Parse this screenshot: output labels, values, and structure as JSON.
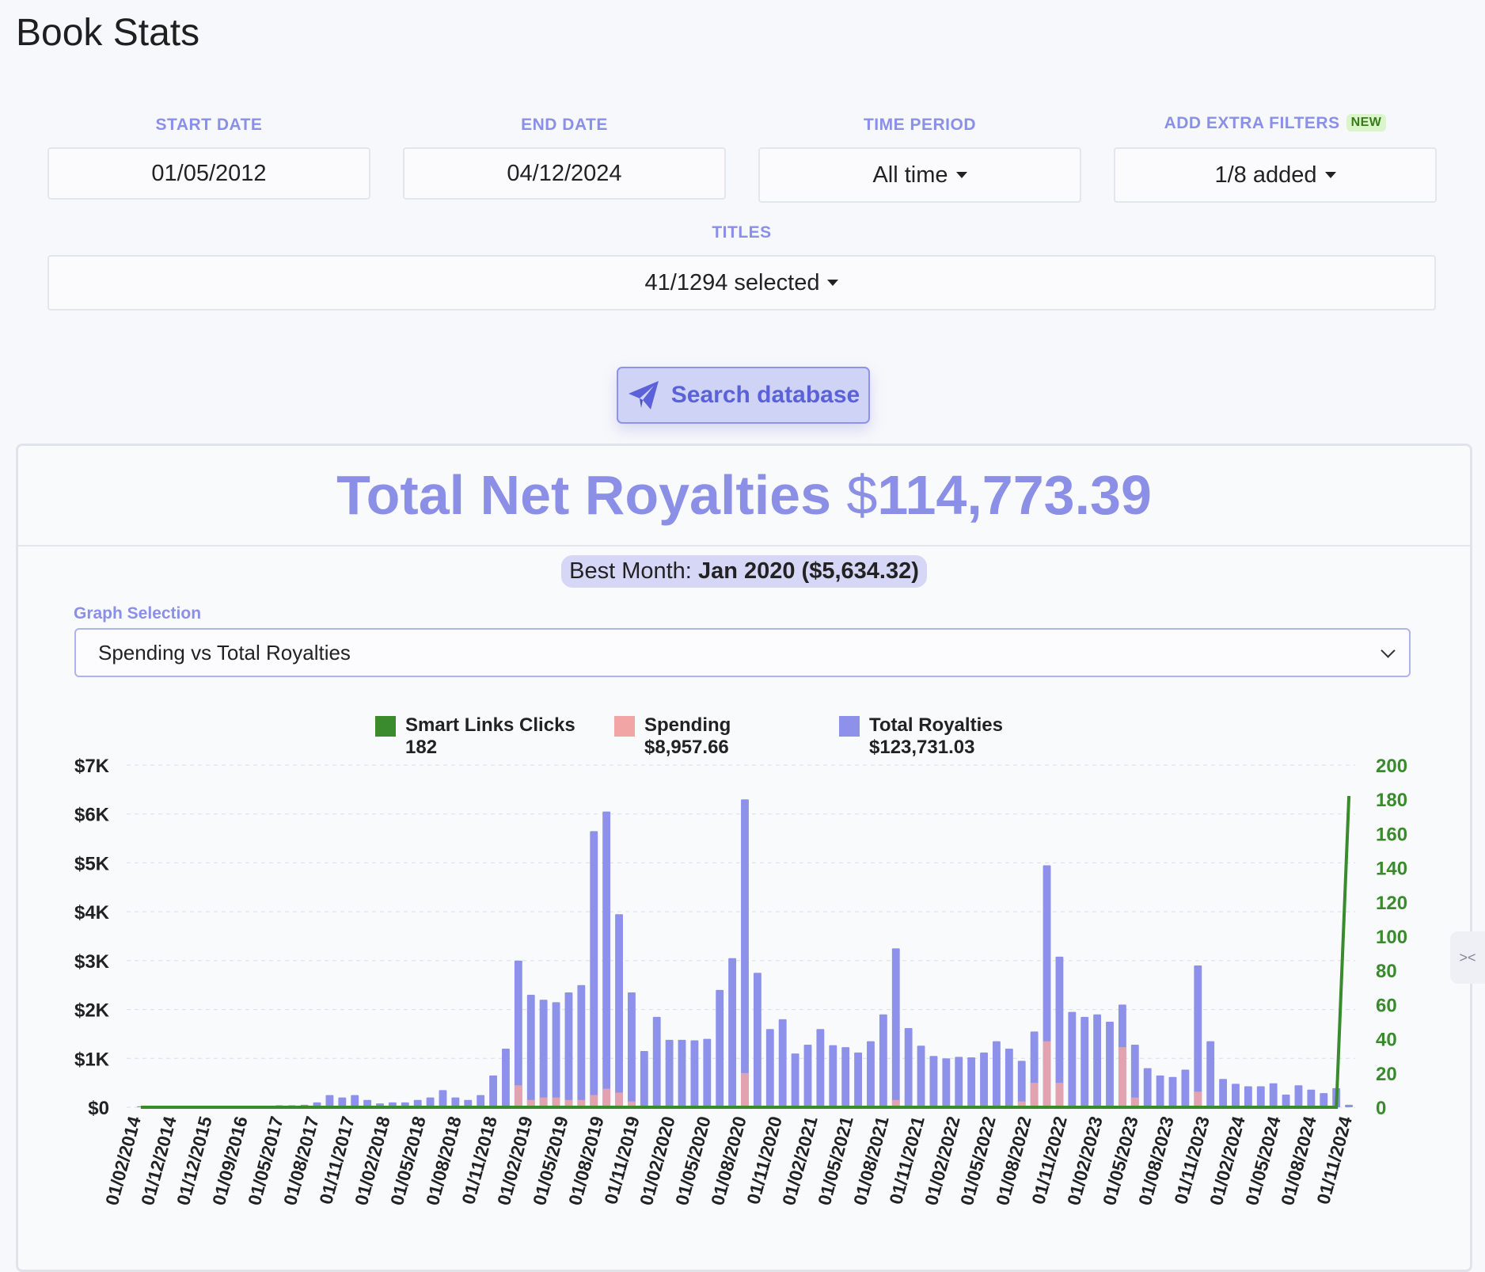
{
  "page_title": "Book Stats",
  "filters": {
    "start_date": {
      "label": "START DATE",
      "value": "01/05/2012"
    },
    "end_date": {
      "label": "END DATE",
      "value": "04/12/2024"
    },
    "time_period": {
      "label": "TIME PERIOD",
      "value": "All time"
    },
    "extra_filters": {
      "label": "ADD EXTRA FILTERS",
      "badge": "NEW",
      "value": "1/8 added"
    },
    "titles": {
      "label": "TITLES",
      "value": "41/1294 selected"
    }
  },
  "search_button": "Search database",
  "summary": {
    "title": "Total Net Royalties",
    "currency": "$",
    "amount": "114,773.39",
    "best_month_label": "Best Month:",
    "best_month_value": "Jan 2020",
    "best_month_amount": "($5,634.32)"
  },
  "graph_selection": {
    "label": "Graph Selection",
    "value": "Spending vs Total Royalties"
  },
  "legend": [
    {
      "name": "Smart Links Clicks",
      "value": "182",
      "color": "#3a8a2e"
    },
    {
      "name": "Spending",
      "value": "$8,957.66",
      "color": "#f2a5a5"
    },
    {
      "name": "Total Royalties",
      "value": "$123,731.03",
      "color": "#8d91ea"
    }
  ],
  "chart_data": {
    "type": "bar",
    "y_left_ticks": [
      "$0",
      "$1K",
      "$2K",
      "$3K",
      "$4K",
      "$5K",
      "$6K",
      "$7K"
    ],
    "y_left_range": [
      0,
      7000
    ],
    "y_right_ticks": [
      "0",
      "20",
      "40",
      "60",
      "80",
      "100",
      "120",
      "140",
      "160",
      "180",
      "200"
    ],
    "y_right_range": [
      0,
      200
    ],
    "x_tick_labels": [
      "01/02/2014",
      "01/12/2014",
      "01/12/2015",
      "01/09/2016",
      "01/05/2017",
      "01/08/2017",
      "01/11/2017",
      "01/02/2018",
      "01/05/2018",
      "01/08/2018",
      "01/11/2018",
      "01/02/2019",
      "01/05/2019",
      "01/08/2019",
      "01/11/2019",
      "01/02/2020",
      "01/05/2020",
      "01/08/2020",
      "01/11/2020",
      "01/02/2021",
      "01/05/2021",
      "01/08/2021",
      "01/11/2021",
      "01/02/2022",
      "01/05/2022",
      "01/08/2022",
      "01/11/2022",
      "01/02/2023",
      "01/05/2023",
      "01/08/2023",
      "01/11/2023",
      "01/02/2024",
      "01/05/2024",
      "01/08/2024",
      "01/11/2024"
    ],
    "royalties": [
      20,
      20,
      20,
      20,
      20,
      20,
      20,
      20,
      30,
      30,
      30,
      40,
      40,
      50,
      100,
      250,
      200,
      250,
      150,
      80,
      100,
      100,
      150,
      200,
      350,
      200,
      150,
      250,
      650,
      1200,
      3000,
      2300,
      2200,
      2150,
      2350,
      2500,
      5650,
      6050,
      3950,
      2350,
      1150,
      1850,
      1380,
      1380,
      1370,
      1400,
      2400,
      3050,
      6300,
      2750,
      1600,
      1800,
      1100,
      1280,
      1600,
      1270,
      1230,
      1120,
      1350,
      1900,
      3250,
      1620,
      1260,
      1050,
      1000,
      1030,
      1020,
      1120,
      1350,
      1200,
      950,
      1550,
      4950,
      3080,
      1950,
      1850,
      1900,
      1750,
      2100,
      1280,
      800,
      650,
      620,
      770,
      2900,
      1350,
      580,
      480,
      430,
      430,
      490,
      260,
      450,
      360,
      290,
      390,
      50
    ],
    "spending": [
      0,
      0,
      0,
      0,
      0,
      0,
      0,
      0,
      0,
      0,
      0,
      0,
      0,
      0,
      0,
      0,
      0,
      0,
      0,
      0,
      0,
      0,
      0,
      0,
      0,
      0,
      0,
      0,
      0,
      0,
      450,
      150,
      200,
      200,
      150,
      150,
      250,
      380,
      300,
      120,
      0,
      0,
      0,
      0,
      0,
      0,
      0,
      0,
      700,
      0,
      0,
      0,
      0,
      0,
      0,
      0,
      0,
      0,
      0,
      0,
      150,
      0,
      0,
      0,
      0,
      0,
      0,
      0,
      0,
      0,
      120,
      500,
      1350,
      500,
      0,
      0,
      0,
      0,
      1230,
      200,
      0,
      0,
      0,
      0,
      320,
      0,
      0,
      0,
      0,
      0,
      0,
      0,
      0,
      0,
      0,
      0,
      0
    ],
    "clicks": [
      0,
      0,
      0,
      0,
      0,
      0,
      0,
      0,
      0,
      0,
      0,
      0,
      0,
      0,
      0,
      0,
      0,
      0,
      0,
      0,
      0,
      0,
      0,
      0,
      0,
      0,
      0,
      0,
      0,
      0,
      0,
      0,
      0,
      0,
      0,
      0,
      0,
      0,
      0,
      0,
      0,
      0,
      0,
      0,
      0,
      0,
      0,
      0,
      0,
      0,
      0,
      0,
      0,
      0,
      0,
      0,
      0,
      0,
      0,
      0,
      0,
      0,
      0,
      0,
      0,
      0,
      0,
      0,
      0,
      0,
      0,
      0,
      0,
      0,
      0,
      0,
      0,
      0,
      0,
      0,
      0,
      0,
      0,
      0,
      0,
      0,
      0,
      0,
      0,
      0,
      0,
      0,
      0,
      0,
      0,
      0,
      182
    ]
  }
}
